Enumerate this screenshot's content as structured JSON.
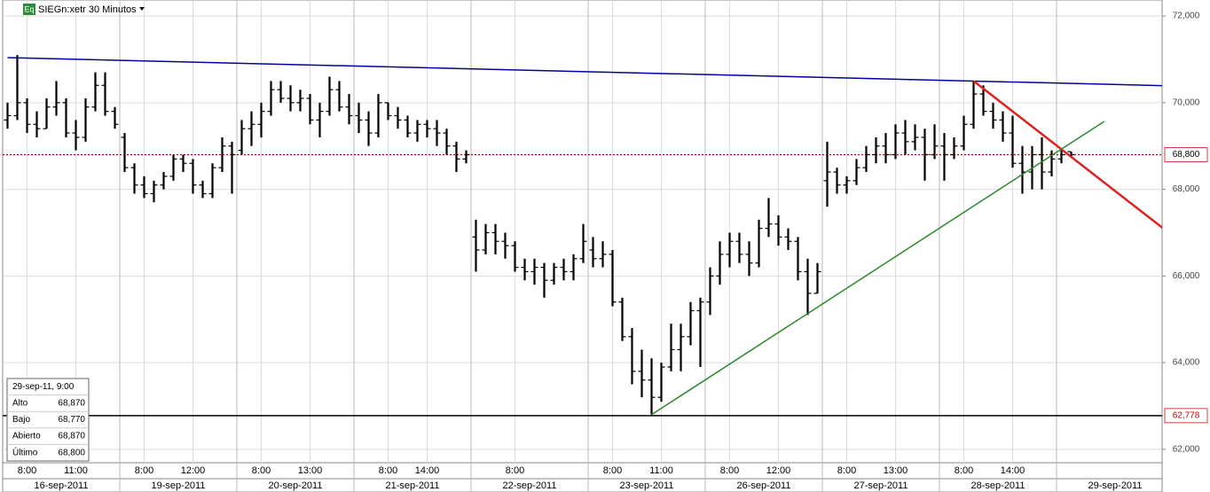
{
  "chart_data": {
    "type": "ohlc",
    "title": "SIEGn:xetr 30 Minutos",
    "badge": "Eq",
    "ylim": [
      61.69,
      72.37
    ],
    "yticks": [
      {
        "value": 62,
        "label": "62,000"
      },
      {
        "value": 64,
        "label": "64,000"
      },
      {
        "value": 66,
        "label": "66,000"
      },
      {
        "value": 68,
        "label": "68,000"
      },
      {
        "value": 70,
        "label": "70,000"
      },
      {
        "value": 72,
        "label": "72,000"
      }
    ],
    "grid": true,
    "color": "#000000",
    "days": [
      {
        "label": "16-sep-2011",
        "times": [
          null,
          null,
          "8:00",
          null,
          null,
          null,
          null,
          "11:00",
          null,
          null,
          null,
          null
        ]
      },
      {
        "label": "19-sep-2011",
        "times": [
          null,
          null,
          "8:00",
          null,
          null,
          null,
          null,
          "12:00",
          null,
          null,
          null,
          null
        ]
      },
      {
        "label": "20-sep-2011",
        "times": [
          null,
          null,
          "8:00",
          null,
          null,
          null,
          null,
          "13:00",
          null,
          null,
          null,
          null
        ]
      },
      {
        "label": "21-sep-2011",
        "times": [
          null,
          null,
          null,
          "8:00",
          null,
          null,
          null,
          "14:00",
          null,
          null,
          null,
          null
        ]
      },
      {
        "label": "22-sep-2011",
        "times": [
          null,
          null,
          null,
          null,
          "8:00",
          null,
          null,
          null,
          null,
          null,
          null,
          null
        ]
      },
      {
        "label": "23-sep-2011",
        "times": [
          null,
          null,
          "8:00",
          null,
          null,
          null,
          null,
          "11:00",
          null,
          null,
          null,
          null
        ]
      },
      {
        "label": "26-sep-2011",
        "times": [
          null,
          null,
          "8:00",
          null,
          null,
          null,
          null,
          "12:00",
          null,
          null,
          null,
          null
        ]
      },
      {
        "label": "27-sep-2011",
        "times": [
          null,
          null,
          "8:00",
          null,
          null,
          null,
          null,
          "13:00",
          null,
          null,
          null,
          null
        ]
      },
      {
        "label": "28-sep-2011",
        "times": [
          null,
          null,
          "8:00",
          null,
          null,
          null,
          null,
          "14:00",
          null,
          null,
          null,
          null
        ]
      },
      {
        "label": "29-sep-2011",
        "times": [
          null,
          null
        ]
      }
    ],
    "ohlc": [
      [
        69.6,
        70.0,
        69.4,
        69.7
      ],
      [
        69.7,
        71.1,
        69.6,
        70.0
      ],
      [
        70.0,
        70.1,
        69.3,
        69.5
      ],
      [
        69.5,
        69.8,
        69.2,
        69.4
      ],
      [
        69.4,
        70.1,
        69.4,
        69.9
      ],
      [
        69.9,
        70.5,
        69.7,
        70.0
      ],
      [
        70.0,
        70.1,
        69.2,
        69.3
      ],
      [
        69.3,
        69.6,
        68.9,
        69.2
      ],
      [
        69.2,
        70.1,
        69.1,
        69.9
      ],
      [
        69.9,
        70.7,
        69.8,
        70.4
      ],
      [
        70.4,
        70.7,
        69.7,
        69.8
      ],
      [
        69.8,
        69.9,
        69.4,
        69.5
      ],
      [
        69.2,
        69.3,
        68.4,
        68.5
      ],
      [
        68.5,
        68.6,
        67.9,
        68.1
      ],
      [
        68.1,
        68.3,
        67.8,
        67.9
      ],
      [
        67.9,
        68.2,
        67.7,
        68.1
      ],
      [
        68.1,
        68.4,
        68.0,
        68.3
      ],
      [
        68.3,
        68.8,
        68.2,
        68.7
      ],
      [
        68.7,
        68.8,
        68.4,
        68.6
      ],
      [
        68.6,
        68.7,
        67.9,
        68.1
      ],
      [
        68.1,
        68.2,
        67.8,
        67.9
      ],
      [
        67.9,
        68.6,
        67.8,
        68.5
      ],
      [
        68.5,
        69.2,
        68.4,
        69.0
      ],
      [
        69.0,
        69.1,
        67.9,
        68.8
      ],
      [
        68.9,
        69.6,
        68.8,
        69.4
      ],
      [
        69.4,
        69.8,
        69.0,
        69.5
      ],
      [
        69.5,
        70.0,
        69.2,
        69.8
      ],
      [
        69.8,
        70.5,
        69.7,
        70.3
      ],
      [
        70.3,
        70.5,
        70.0,
        70.1
      ],
      [
        70.1,
        70.4,
        69.8,
        70.0
      ],
      [
        70.0,
        70.3,
        69.8,
        70.1
      ],
      [
        70.1,
        70.2,
        69.5,
        69.6
      ],
      [
        69.6,
        70.0,
        69.2,
        69.8
      ],
      [
        69.8,
        70.6,
        69.7,
        70.3
      ],
      [
        70.3,
        70.5,
        69.8,
        69.9
      ],
      [
        69.9,
        70.2,
        69.5,
        69.7
      ],
      [
        69.7,
        70.0,
        69.3,
        69.6
      ],
      [
        69.6,
        69.8,
        69.0,
        69.3
      ],
      [
        69.3,
        70.2,
        69.2,
        70.0
      ],
      [
        70.0,
        70.0,
        69.6,
        69.7
      ],
      [
        69.7,
        69.9,
        69.4,
        69.6
      ],
      [
        69.6,
        69.7,
        69.2,
        69.3
      ],
      [
        69.3,
        69.6,
        69.1,
        69.5
      ],
      [
        69.5,
        69.6,
        69.2,
        69.4
      ],
      [
        69.4,
        69.6,
        69.0,
        69.3
      ],
      [
        69.3,
        69.4,
        68.8,
        69.0
      ],
      [
        69.0,
        69.1,
        68.4,
        68.7
      ],
      [
        68.7,
        68.9,
        68.6,
        68.8
      ],
      [
        66.9,
        67.3,
        66.1,
        66.6
      ],
      [
        66.6,
        67.2,
        66.5,
        67.0
      ],
      [
        67.0,
        67.2,
        66.5,
        66.8
      ],
      [
        66.8,
        67.0,
        66.4,
        66.7
      ],
      [
        66.7,
        66.8,
        66.1,
        66.2
      ],
      [
        66.2,
        66.4,
        65.9,
        66.1
      ],
      [
        66.1,
        66.4,
        65.8,
        66.2
      ],
      [
        66.2,
        66.3,
        65.5,
        65.9
      ],
      [
        65.9,
        66.3,
        65.8,
        66.2
      ],
      [
        66.2,
        66.4,
        65.9,
        66.1
      ],
      [
        66.1,
        66.5,
        65.9,
        66.4
      ],
      [
        66.4,
        67.2,
        66.3,
        66.8
      ],
      [
        66.6,
        66.9,
        66.2,
        66.4
      ],
      [
        66.4,
        66.8,
        66.2,
        66.5
      ],
      [
        66.5,
        66.6,
        65.3,
        65.4
      ],
      [
        65.4,
        65.5,
        64.5,
        64.6
      ],
      [
        64.6,
        64.8,
        63.5,
        63.8
      ],
      [
        63.8,
        64.3,
        63.2,
        63.6
      ],
      [
        63.6,
        64.1,
        62.8,
        63.2
      ],
      [
        63.2,
        64.0,
        63.1,
        63.9
      ],
      [
        63.9,
        64.9,
        63.8,
        64.3
      ],
      [
        64.3,
        64.9,
        63.8,
        64.6
      ],
      [
        64.6,
        65.4,
        64.4,
        65.2
      ],
      [
        65.2,
        65.5,
        63.9,
        65.4
      ],
      [
        65.4,
        66.2,
        65.1,
        66.0
      ],
      [
        66.0,
        66.8,
        65.8,
        66.5
      ],
      [
        66.5,
        67.0,
        66.2,
        66.8
      ],
      [
        66.8,
        67.0,
        66.3,
        66.5
      ],
      [
        66.5,
        66.8,
        66.0,
        66.3
      ],
      [
        66.3,
        67.3,
        66.2,
        67.1
      ],
      [
        67.1,
        67.8,
        66.9,
        67.2
      ],
      [
        67.2,
        67.4,
        66.7,
        66.9
      ],
      [
        66.9,
        67.1,
        66.6,
        66.8
      ],
      [
        66.8,
        66.9,
        65.9,
        66.1
      ],
      [
        66.1,
        66.4,
        65.1,
        65.6
      ],
      [
        65.6,
        66.3,
        65.6,
        66.1
      ],
      [
        68.2,
        69.1,
        67.6,
        68.4
      ],
      [
        68.4,
        68.5,
        67.9,
        68.1
      ],
      [
        68.1,
        68.3,
        67.9,
        68.2
      ],
      [
        68.2,
        68.7,
        68.1,
        68.5
      ],
      [
        68.5,
        69.0,
        68.4,
        68.8
      ],
      [
        68.8,
        69.2,
        68.6,
        69.0
      ],
      [
        69.0,
        69.3,
        68.6,
        68.8
      ],
      [
        68.8,
        69.5,
        68.7,
        69.3
      ],
      [
        69.3,
        69.6,
        68.8,
        69.1
      ],
      [
        69.1,
        69.5,
        68.9,
        69.2
      ],
      [
        69.2,
        69.4,
        68.2,
        68.8
      ],
      [
        68.8,
        69.5,
        68.7,
        69.0
      ],
      [
        69.0,
        69.3,
        68.2,
        68.8
      ],
      [
        68.8,
        69.2,
        68.7,
        69.0
      ],
      [
        69.0,
        69.7,
        68.9,
        69.5
      ],
      [
        69.5,
        70.5,
        69.4,
        70.2
      ],
      [
        70.2,
        70.4,
        69.7,
        69.8
      ],
      [
        69.8,
        70.0,
        69.4,
        69.6
      ],
      [
        69.6,
        69.8,
        69.1,
        69.3
      ],
      [
        69.3,
        69.7,
        68.5,
        68.6
      ],
      [
        68.6,
        69.0,
        67.9,
        68.4
      ],
      [
        68.4,
        69.0,
        68.0,
        68.8
      ],
      [
        68.8,
        69.2,
        68.0,
        68.4
      ],
      [
        68.4,
        68.9,
        68.3,
        68.7
      ],
      [
        68.7,
        68.9,
        68.6,
        68.8
      ],
      [
        68.87,
        68.87,
        68.77,
        68.8
      ]
    ],
    "trendlines": [
      {
        "color": "#0000a0",
        "from": [
          0,
          71.04
        ],
        "to": [
          119,
          70.39
        ]
      },
      {
        "color": "#e02020",
        "from": [
          99,
          70.5
        ],
        "to": [
          119,
          67.0
        ]
      },
      {
        "color": "#2a8a2a",
        "from": [
          66,
          62.8
        ],
        "to": [
          112.4,
          69.57
        ]
      }
    ],
    "price_lines": [
      {
        "value": 68.8,
        "label": "68,800",
        "color": "#c00000",
        "style": "dotted"
      },
      {
        "value": 62.778,
        "label": "62,778",
        "color": "#000000",
        "style": "solid"
      }
    ],
    "info": {
      "date": "29-sep-11, 9:00",
      "rows": [
        {
          "label": "Alto",
          "value": "68,870"
        },
        {
          "label": "Bajo",
          "value": "68,770"
        },
        {
          "label": "Abierto",
          "value": "68,870"
        },
        {
          "label": "Último",
          "value": "68,800"
        }
      ]
    }
  }
}
